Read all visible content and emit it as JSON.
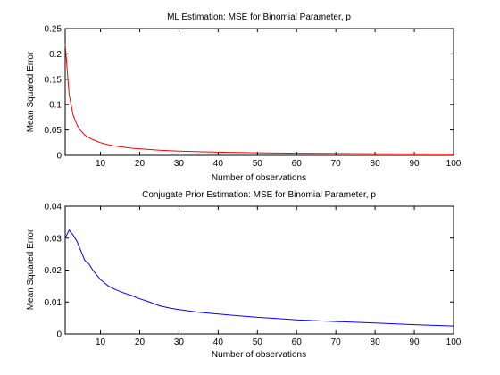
{
  "chart_data": [
    {
      "type": "line",
      "title": "ML Estimation: MSE for Binomial Parameter, p",
      "xlabel": "Number of observations",
      "ylabel": "Mean Squared Error",
      "xlim": [
        1,
        100
      ],
      "ylim": [
        0,
        0.25
      ],
      "xticks": [
        10,
        20,
        30,
        40,
        50,
        60,
        70,
        80,
        90,
        100
      ],
      "xtick_labels": [
        "10",
        "20",
        "30",
        "40",
        "50",
        "60",
        "70",
        "80",
        "90",
        "100"
      ],
      "yticks": [
        0,
        0.05,
        0.1,
        0.15,
        0.2,
        0.25
      ],
      "ytick_labels": [
        "0",
        "0.05",
        "0.1",
        "0.15",
        "0.2",
        "0.25"
      ],
      "grid": false,
      "series": [
        {
          "color": "#ff0000",
          "x": [
            1,
            2,
            3,
            4,
            5,
            6,
            7,
            8,
            9,
            10,
            12,
            14,
            16,
            18,
            20,
            25,
            30,
            35,
            40,
            45,
            50,
            60,
            70,
            80,
            90,
            100
          ],
          "values": [
            0.22,
            0.12,
            0.08,
            0.06,
            0.048,
            0.04,
            0.035,
            0.031,
            0.028,
            0.025,
            0.021,
            0.018,
            0.016,
            0.014,
            0.013,
            0.01,
            0.0085,
            0.0073,
            0.0064,
            0.0057,
            0.0051,
            0.0043,
            0.0037,
            0.0032,
            0.0028,
            0.0026
          ]
        }
      ]
    },
    {
      "type": "line",
      "title": "Conjugate Prior Estimation: MSE for Binomial Parameter, p",
      "xlabel": "Number of observations",
      "ylabel": "Mean Squared Error",
      "xlim": [
        1,
        100
      ],
      "ylim": [
        0,
        0.04
      ],
      "xticks": [
        10,
        20,
        30,
        40,
        50,
        60,
        70,
        80,
        90,
        100
      ],
      "xtick_labels": [
        "10",
        "20",
        "30",
        "40",
        "50",
        "60",
        "70",
        "80",
        "90",
        "100"
      ],
      "yticks": [
        0,
        0.01,
        0.02,
        0.03,
        0.04
      ],
      "ytick_labels": [
        "0",
        "0.01",
        "0.02",
        "0.03",
        "0.04"
      ],
      "grid": false,
      "series": [
        {
          "color": "#0000ff",
          "x": [
            1,
            2,
            3,
            4,
            5,
            6,
            7,
            8,
            9,
            10,
            12,
            14,
            16,
            18,
            20,
            22,
            25,
            28,
            30,
            35,
            40,
            45,
            50,
            55,
            60,
            70,
            80,
            90,
            100
          ],
          "values": [
            0.03,
            0.0325,
            0.031,
            0.029,
            0.026,
            0.023,
            0.022,
            0.02,
            0.0185,
            0.017,
            0.015,
            0.0138,
            0.0128,
            0.012,
            0.011,
            0.0102,
            0.0088,
            0.008,
            0.0076,
            0.0068,
            0.0062,
            0.0057,
            0.0052,
            0.0048,
            0.0044,
            0.0039,
            0.0034,
            0.0029,
            0.0025
          ]
        }
      ]
    }
  ]
}
